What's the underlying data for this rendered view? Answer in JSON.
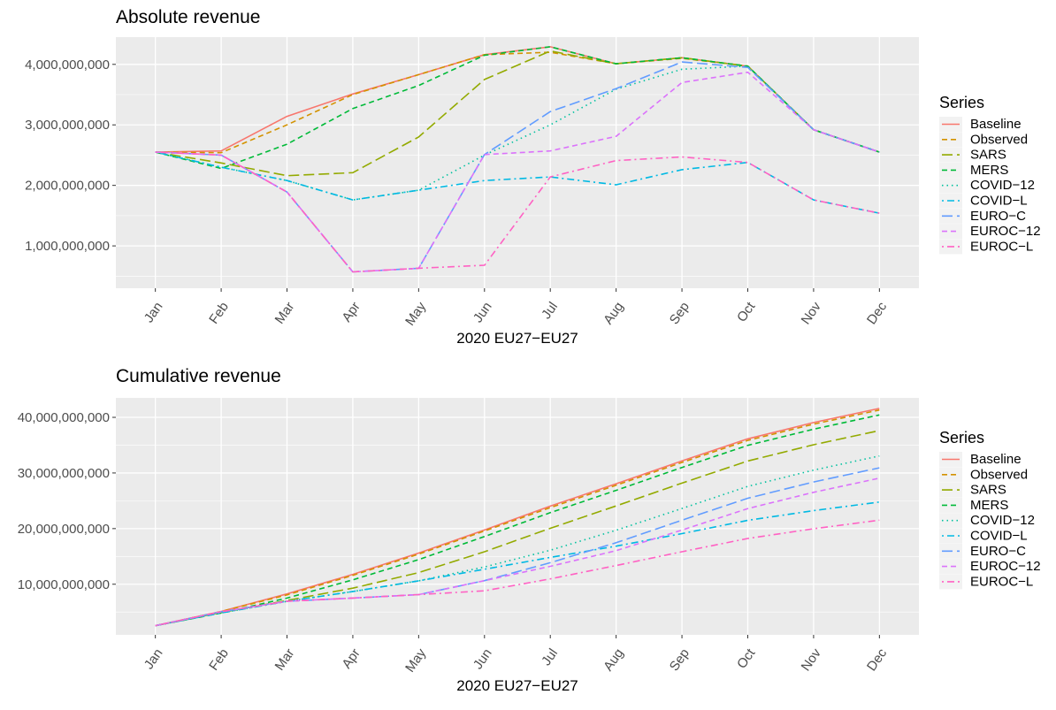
{
  "chart_data": [
    {
      "type": "line",
      "title": "Absolute revenue",
      "xlabel": "2020 EU27−EU27",
      "ylabel": "",
      "ylim": [
        300000000,
        4450000000
      ],
      "yticks": [
        1000000000,
        2000000000,
        3000000000,
        4000000000
      ],
      "ytick_labels": [
        "1,000,000,000",
        "2,000,000,000",
        "3,000,000,000",
        "4,000,000,000"
      ],
      "categories": [
        "Jan",
        "Feb",
        "Mar",
        "Apr",
        "May",
        "Jun",
        "Jul",
        "Aug",
        "Sep",
        "Oct",
        "Nov",
        "Dec"
      ],
      "grid": true,
      "legend_title": "Series",
      "legend_position": "right",
      "series": [
        {
          "name": "Baseline",
          "color": "#F8766D",
          "dash": "solid",
          "values": [
            2550000000,
            2570000000,
            3140000000,
            3510000000,
            3830000000,
            4160000000,
            4290000000,
            4010000000,
            4110000000,
            3970000000,
            2920000000,
            2550000000
          ]
        },
        {
          "name": "Observed",
          "color": "#D39200",
          "dash": "dash",
          "values": [
            2550000000,
            2540000000,
            3000000000,
            3500000000,
            3830000000,
            4160000000,
            4200000000,
            4010000000,
            4100000000,
            3970000000,
            2920000000,
            2550000000
          ]
        },
        {
          "name": "SARS",
          "color": "#93AA00",
          "dash": "longdash",
          "values": [
            2550000000,
            2370000000,
            2160000000,
            2210000000,
            2800000000,
            3750000000,
            4220000000,
            4010000000,
            4110000000,
            3970000000,
            2920000000,
            2550000000
          ]
        },
        {
          "name": "MERS",
          "color": "#00BA38",
          "dash": "dash",
          "values": [
            2550000000,
            2280000000,
            2680000000,
            3270000000,
            3650000000,
            4150000000,
            4290000000,
            4010000000,
            4110000000,
            3970000000,
            2920000000,
            2550000000
          ]
        },
        {
          "name": "COVID−12",
          "color": "#00C19F",
          "dash": "dot",
          "values": [
            2550000000,
            2300000000,
            2080000000,
            1760000000,
            1920000000,
            2500000000,
            3000000000,
            3590000000,
            3920000000,
            3970000000,
            2920000000,
            2550000000
          ]
        },
        {
          "name": "COVID−L",
          "color": "#00B9E3",
          "dash": "dotdash",
          "values": [
            2550000000,
            2300000000,
            2080000000,
            1760000000,
            1920000000,
            2080000000,
            2140000000,
            2010000000,
            2260000000,
            2380000000,
            1760000000,
            1540000000
          ]
        },
        {
          "name": "EURO−C",
          "color": "#619CFF",
          "dash": "longdash",
          "values": [
            2550000000,
            2500000000,
            1890000000,
            570000000,
            630000000,
            2510000000,
            3220000000,
            3600000000,
            4040000000,
            3950000000,
            2920000000,
            2550000000
          ]
        },
        {
          "name": "EUROC−12",
          "color": "#DB72FB",
          "dash": "dash",
          "values": [
            2550000000,
            2500000000,
            1890000000,
            570000000,
            630000000,
            2510000000,
            2570000000,
            2810000000,
            3700000000,
            3870000000,
            2920000000,
            2550000000
          ]
        },
        {
          "name": "EUROC−L",
          "color": "#FF61C3",
          "dash": "dotdash",
          "values": [
            2550000000,
            2500000000,
            1890000000,
            570000000,
            630000000,
            680000000,
            2140000000,
            2410000000,
            2470000000,
            2380000000,
            1760000000,
            1540000000
          ]
        }
      ]
    },
    {
      "type": "line",
      "title": "Cumulative revenue",
      "xlabel": "2020 EU27−EU27",
      "ylabel": "",
      "ylim": [
        900000000,
        43500000000
      ],
      "yticks": [
        10000000000,
        20000000000,
        30000000000,
        40000000000
      ],
      "ytick_labels": [
        "10,000,000,000",
        "20,000,000,000",
        "30,000,000,000",
        "40,000,000,000"
      ],
      "categories": [
        "Jan",
        "Feb",
        "Mar",
        "Apr",
        "May",
        "Jun",
        "Jul",
        "Aug",
        "Sep",
        "Oct",
        "Nov",
        "Dec"
      ],
      "grid": true,
      "legend_title": "Series",
      "legend_position": "right",
      "series": [
        {
          "name": "Baseline",
          "color": "#F8766D",
          "dash": "solid",
          "values": [
            2550000000,
            5120000000,
            8260000000,
            11770000000,
            15600000000,
            19760000000,
            24050000000,
            28060000000,
            32170000000,
            36140000000,
            39060000000,
            41610000000
          ]
        },
        {
          "name": "Observed",
          "color": "#D39200",
          "dash": "dash",
          "values": [
            2550000000,
            5090000000,
            8090000000,
            11590000000,
            15420000000,
            19580000000,
            23780000000,
            27790000000,
            31890000000,
            35860000000,
            38780000000,
            41330000000
          ]
        },
        {
          "name": "SARS",
          "color": "#93AA00",
          "dash": "longdash",
          "values": [
            2550000000,
            4920000000,
            7080000000,
            9290000000,
            12090000000,
            15840000000,
            20060000000,
            24070000000,
            28180000000,
            32150000000,
            35070000000,
            37620000000
          ]
        },
        {
          "name": "MERS",
          "color": "#00BA38",
          "dash": "dash",
          "values": [
            2550000000,
            4830000000,
            7510000000,
            10780000000,
            14430000000,
            18580000000,
            22870000000,
            26880000000,
            30990000000,
            34960000000,
            37880000000,
            40430000000
          ]
        },
        {
          "name": "COVID−12",
          "color": "#00C19F",
          "dash": "dot",
          "values": [
            2550000000,
            4850000000,
            6930000000,
            8690000000,
            10610000000,
            13110000000,
            16110000000,
            19700000000,
            23620000000,
            27590000000,
            30510000000,
            33060000000
          ]
        },
        {
          "name": "COVID−L",
          "color": "#00B9E3",
          "dash": "dotdash",
          "values": [
            2550000000,
            4850000000,
            6930000000,
            8690000000,
            10610000000,
            12690000000,
            14830000000,
            16840000000,
            19100000000,
            21480000000,
            23240000000,
            24780000000
          ]
        },
        {
          "name": "EURO−C",
          "color": "#619CFF",
          "dash": "longdash",
          "values": [
            2550000000,
            5050000000,
            6940000000,
            7510000000,
            8140000000,
            10650000000,
            13870000000,
            17470000000,
            21510000000,
            25460000000,
            28380000000,
            30930000000
          ]
        },
        {
          "name": "EUROC−12",
          "color": "#DB72FB",
          "dash": "dash",
          "values": [
            2550000000,
            5050000000,
            6940000000,
            7510000000,
            8140000000,
            10650000000,
            13220000000,
            16030000000,
            19730000000,
            23600000000,
            26520000000,
            29070000000
          ]
        },
        {
          "name": "EUROC−L",
          "color": "#FF61C3",
          "dash": "dotdash",
          "values": [
            2550000000,
            5050000000,
            6940000000,
            7510000000,
            8140000000,
            8820000000,
            10960000000,
            13370000000,
            15840000000,
            18220000000,
            19980000000,
            21520000000
          ]
        }
      ]
    }
  ]
}
